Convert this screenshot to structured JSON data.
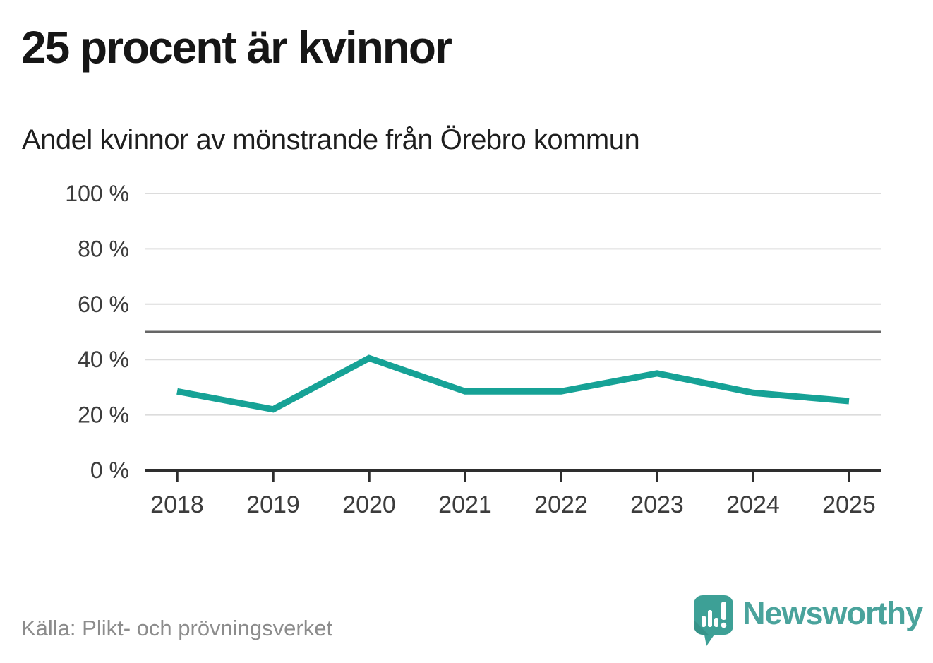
{
  "title": "25 procent är kvinnor",
  "subtitle": "Andel kvinnor av mönstrande från Örebro kommun",
  "source": "Källa: Plikt- och prövningsverket",
  "brand": {
    "name": "Newsworthy",
    "icon": "speech-bubble-with-bar-chart-and-exclamation",
    "wordmark_color": "#4aa39c",
    "icon_color": "#3da096",
    "icon_shadow_color": "#31897f"
  },
  "colors": {
    "background": "#ffffff",
    "line": "#16a296",
    "reference_line": "#666666",
    "gridline": "#dcdcdc",
    "axis": "#2e2e2e",
    "axis_text": "#3c3c3c",
    "title_text": "#161616",
    "muted_text": "#8c8c8c"
  },
  "chart_data": {
    "type": "line",
    "title": "25 procent är kvinnor",
    "subtitle": "Andel kvinnor av mönstrande från Örebro kommun",
    "x": [
      2018,
      2019,
      2020,
      2021,
      2022,
      2023,
      2024,
      2025
    ],
    "x_labels": [
      "2018",
      "2019",
      "2020",
      "2021",
      "2022",
      "2023",
      "2024",
      "2025"
    ],
    "series": [
      {
        "name": "Andel kvinnor av mönstrande",
        "values": [
          28.5,
          22,
          40.5,
          28.5,
          28.5,
          35,
          28,
          25
        ]
      }
    ],
    "unit": "%",
    "ylim": [
      0,
      100
    ],
    "yticks": [
      0,
      20,
      40,
      60,
      80,
      100
    ],
    "ytick_labels": [
      "0 %",
      "20 %",
      "40 %",
      "60 %",
      "80 %",
      "100 %"
    ],
    "reference_line": {
      "value": 50
    },
    "grid": "horizontal",
    "legend": "none",
    "source": "Källa: Plikt- och prövningsverket"
  }
}
